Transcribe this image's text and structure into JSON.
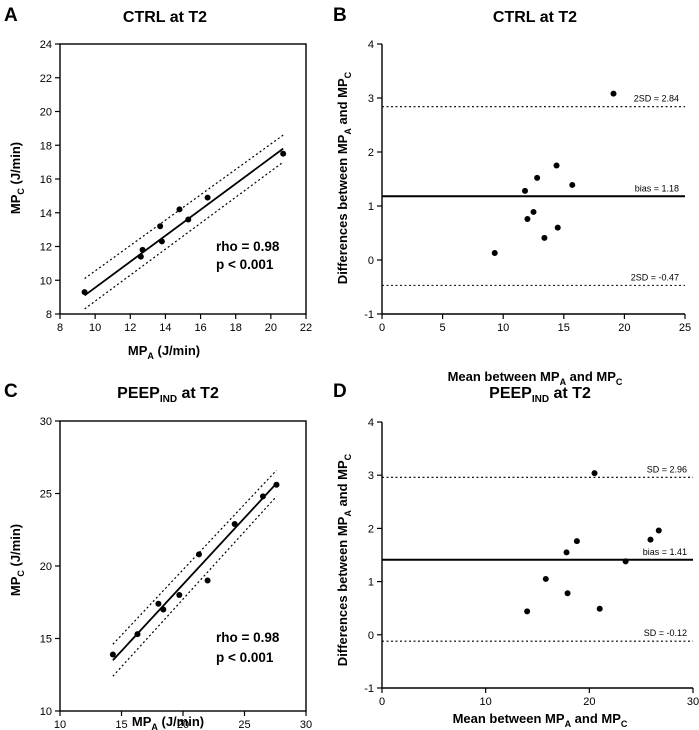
{
  "figure": {
    "panels": [
      {
        "letter": "A",
        "title_main": "CTRL at T2",
        "title_sub": ""
      },
      {
        "letter": "B",
        "title_main": "CTRL at T2",
        "title_sub": ""
      },
      {
        "letter": "C",
        "title_main": "PEEP",
        "title_sub": "IND",
        "title_tail": " at T2"
      },
      {
        "letter": "D",
        "title_main": "PEEP",
        "title_sub": "IND",
        "title_tail": " at T2"
      }
    ]
  },
  "chart_data": [
    {
      "id": "A",
      "type": "scatter",
      "title": "CTRL at T2",
      "xlabel": {
        "base": "MP",
        "sub": "A",
        "tail": " (J/min)"
      },
      "ylabel": {
        "base": "MP",
        "sub": "C",
        "tail": " (J/min)"
      },
      "xlim": [
        8,
        22
      ],
      "ylim": [
        8,
        24
      ],
      "xticks": [
        8,
        10,
        12,
        14,
        16,
        18,
        20,
        22
      ],
      "yticks": [
        8,
        10,
        12,
        14,
        16,
        18,
        20,
        22,
        24
      ],
      "x": [
        9.4,
        12.6,
        12.7,
        13.7,
        13.8,
        14.8,
        15.3,
        16.4,
        20.7
      ],
      "y": [
        9.3,
        11.4,
        11.8,
        13.2,
        12.3,
        14.2,
        13.6,
        14.9,
        17.5
      ],
      "fit_line": {
        "x": [
          9.4,
          20.7
        ],
        "y": [
          9.1,
          17.8
        ]
      },
      "ci_upper": {
        "x": [
          9.4,
          20.7
        ],
        "y": [
          10.1,
          18.6
        ]
      },
      "ci_lower": {
        "x": [
          9.4,
          20.7
        ],
        "y": [
          8.3,
          17.0
        ]
      },
      "annotations": [
        "rho = 0.98",
        "p < 0.001"
      ]
    },
    {
      "id": "B",
      "type": "scatter",
      "title": "CTRL at T2",
      "xlabel": {
        "base": "Mean between MP",
        "sub": "A",
        "mid": " and MP",
        "sub2": "C"
      },
      "ylabel": {
        "base": "Differences between MP",
        "sub": "A",
        "mid": " and MP",
        "sub2": "C"
      },
      "xlim": [
        0,
        25
      ],
      "ylim": [
        -1,
        4
      ],
      "xticks": [
        0,
        5,
        10,
        15,
        20,
        25
      ],
      "yticks": [
        -1,
        0,
        1,
        2,
        3,
        4
      ],
      "x": [
        9.3,
        11.8,
        12.0,
        12.5,
        12.8,
        13.4,
        14.4,
        14.5,
        15.7,
        19.1
      ],
      "y": [
        0.13,
        1.28,
        0.76,
        0.89,
        1.52,
        0.41,
        1.75,
        0.6,
        1.39,
        3.08
      ],
      "bias": 1.18,
      "upper_loa": 2.84,
      "lower_loa": -0.47,
      "labels": {
        "upper": "2SD = 2.84",
        "bias": "bias = 1.18",
        "lower": "2SD = -0.47"
      }
    },
    {
      "id": "C",
      "type": "scatter",
      "title": "PEEPIND at T2",
      "xlabel": {
        "base": "MP",
        "sub": "A",
        "tail": " (J/min)"
      },
      "ylabel": {
        "base": "MP",
        "sub": "C",
        "tail": " (J/min)"
      },
      "xlim": [
        10,
        30
      ],
      "ylim": [
        10,
        30
      ],
      "xticks": [
        10,
        15,
        20,
        25,
        30
      ],
      "yticks": [
        10,
        15,
        20,
        25,
        30
      ],
      "x": [
        14.3,
        16.3,
        18.0,
        18.4,
        19.7,
        21.3,
        22.0,
        24.2,
        26.5,
        27.6
      ],
      "y": [
        13.9,
        15.3,
        17.4,
        17.0,
        18.0,
        20.8,
        19.0,
        22.9,
        24.8,
        25.6
      ],
      "fit_line": {
        "x": [
          14.3,
          27.6
        ],
        "y": [
          13.5,
          25.7
        ]
      },
      "ci_upper": {
        "x": [
          14.3,
          27.6
        ],
        "y": [
          14.6,
          26.6
        ]
      },
      "ci_lower": {
        "x": [
          14.3,
          27.6
        ],
        "y": [
          12.4,
          24.8
        ]
      },
      "annotations": [
        "rho = 0.98",
        "p < 0.001"
      ]
    },
    {
      "id": "D",
      "type": "scatter",
      "title": "PEEPIND at T2",
      "xlabel": {
        "base": "Mean between MP",
        "sub": "A",
        "mid": " and MP",
        "sub2": "C"
      },
      "ylabel": {
        "base": "Differences between MP",
        "sub": "A",
        "mid": " and MP",
        "sub2": "C"
      },
      "xlim": [
        0,
        30
      ],
      "ylim": [
        -1,
        4
      ],
      "xticks": [
        0,
        10,
        20,
        30
      ],
      "yticks": [
        -1,
        0,
        1,
        2,
        3,
        4
      ],
      "x": [
        14.0,
        15.8,
        17.8,
        17.9,
        18.8,
        20.5,
        21.0,
        23.5,
        25.9,
        26.7
      ],
      "y": [
        0.44,
        1.05,
        1.55,
        0.78,
        1.76,
        3.04,
        0.49,
        1.38,
        1.79,
        1.96
      ],
      "bias": 1.41,
      "upper_loa": 2.96,
      "lower_loa": -0.12,
      "labels": {
        "upper": "SD = 2.96",
        "bias": "bias = 1.41",
        "lower": "SD = -0.12"
      }
    }
  ]
}
